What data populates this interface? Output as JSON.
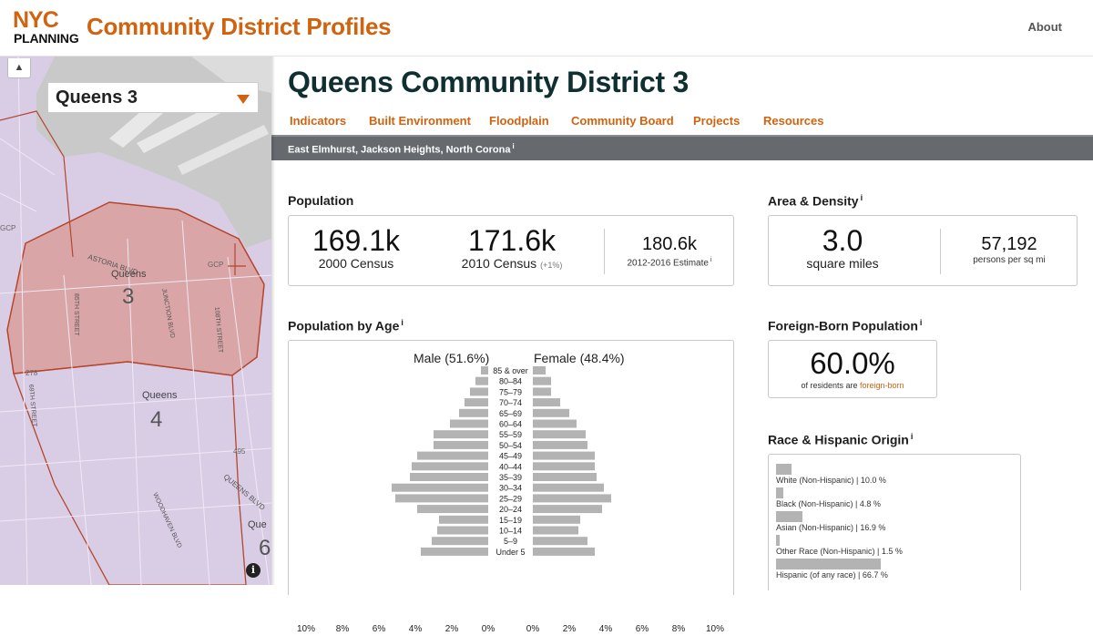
{
  "header": {
    "logo_nyc": "NYC",
    "logo_planning": "PLANNING",
    "app_title": "Community District Profiles",
    "about_label": "About"
  },
  "map": {
    "zoom_label": "▲",
    "district_select_value": "Queens 3",
    "labels": {
      "d3_borough": "Queens",
      "d3_number": "3",
      "d4_borough": "Queens",
      "d4_number": "4",
      "edge_borough": "Que",
      "edge_number": "6",
      "astoria": "ASTORIA BLVD",
      "street_85": "85TH STREET",
      "junction": "JUNCTION BLVD",
      "street_108": "108TH STREET",
      "street_69": "69TH STREET",
      "woodhaven": "WOODHAVEN BLVD",
      "queens_blvd": "QUEENS BLVD",
      "route_278": "278",
      "route_495": "495",
      "gcp_left": "GCP",
      "gcp_right": "GCP"
    },
    "info_icon": "i"
  },
  "page": {
    "title": "Queens Community District 3",
    "tabs": [
      "Indicators",
      "Built Environment",
      "Floodplain",
      "Community Board",
      "Projects",
      "Resources"
    ],
    "neighborhoods": "East Elmhurst, Jackson Heights, North Corona",
    "info_glyph": "i"
  },
  "population": {
    "title": "Population",
    "census_2000_value": "169.1k",
    "census_2000_label": "2000 Census",
    "census_2010_value": "171.6k",
    "census_2010_label": "2010 Census",
    "census_2010_change": "(+1%)",
    "estimate_value": "180.6k",
    "estimate_label": "2012-2016 Estimate"
  },
  "area_density": {
    "title": "Area & Density",
    "area_value": "3.0",
    "area_label": "square miles",
    "density_value": "57,192",
    "density_label": "persons per sq mi"
  },
  "foreign_born": {
    "title": "Foreign-Born Population",
    "value": "60.0%",
    "label_prefix": "of residents are",
    "label_link": "foreign-born"
  },
  "race": {
    "title": "Race & Hispanic Origin",
    "rows": [
      {
        "label": "White (Non-Hispanic) | 10.0 %",
        "value": 10.0
      },
      {
        "label": "Black (Non-Hispanic) | 4.8 %",
        "value": 4.8
      },
      {
        "label": "Asian (Non-Hispanic) | 16.9 %",
        "value": 16.9
      },
      {
        "label": "Other Race (Non-Hispanic) | 1.5 %",
        "value": 1.5
      },
      {
        "label": "Hispanic (of any race) | 66.7 %",
        "value": 66.7
      }
    ]
  },
  "chart_data": {
    "type": "bar",
    "title": "Population by Age",
    "orientation": "horizontal-pyramid",
    "categories": [
      "85 & over",
      "80–84",
      "75–79",
      "70–74",
      "65–69",
      "60–64",
      "55–59",
      "50–54",
      "45–49",
      "40–44",
      "35–39",
      "30–34",
      "25–29",
      "20–24",
      "15–19",
      "10–14",
      "5–9",
      "Under 5"
    ],
    "series": [
      {
        "name": "Male (51.6%)",
        "values": [
          0.4,
          0.7,
          1.0,
          1.3,
          1.6,
          2.1,
          3.0,
          3.0,
          3.9,
          4.2,
          4.3,
          5.3,
          5.1,
          3.9,
          2.7,
          2.8,
          3.1,
          3.7
        ]
      },
      {
        "name": "Female (48.4%)",
        "values": [
          0.7,
          1.0,
          1.0,
          1.5,
          2.0,
          2.4,
          2.9,
          3.0,
          3.4,
          3.4,
          3.5,
          3.9,
          4.3,
          3.8,
          2.6,
          2.5,
          3.0,
          3.4
        ]
      }
    ],
    "xlim": [
      -10,
      10
    ],
    "x_ticks": [
      "10%",
      "8%",
      "6%",
      "4%",
      "2%",
      "0%",
      "0%",
      "2%",
      "4%",
      "6%",
      "8%",
      "10%"
    ],
    "grid": false
  }
}
